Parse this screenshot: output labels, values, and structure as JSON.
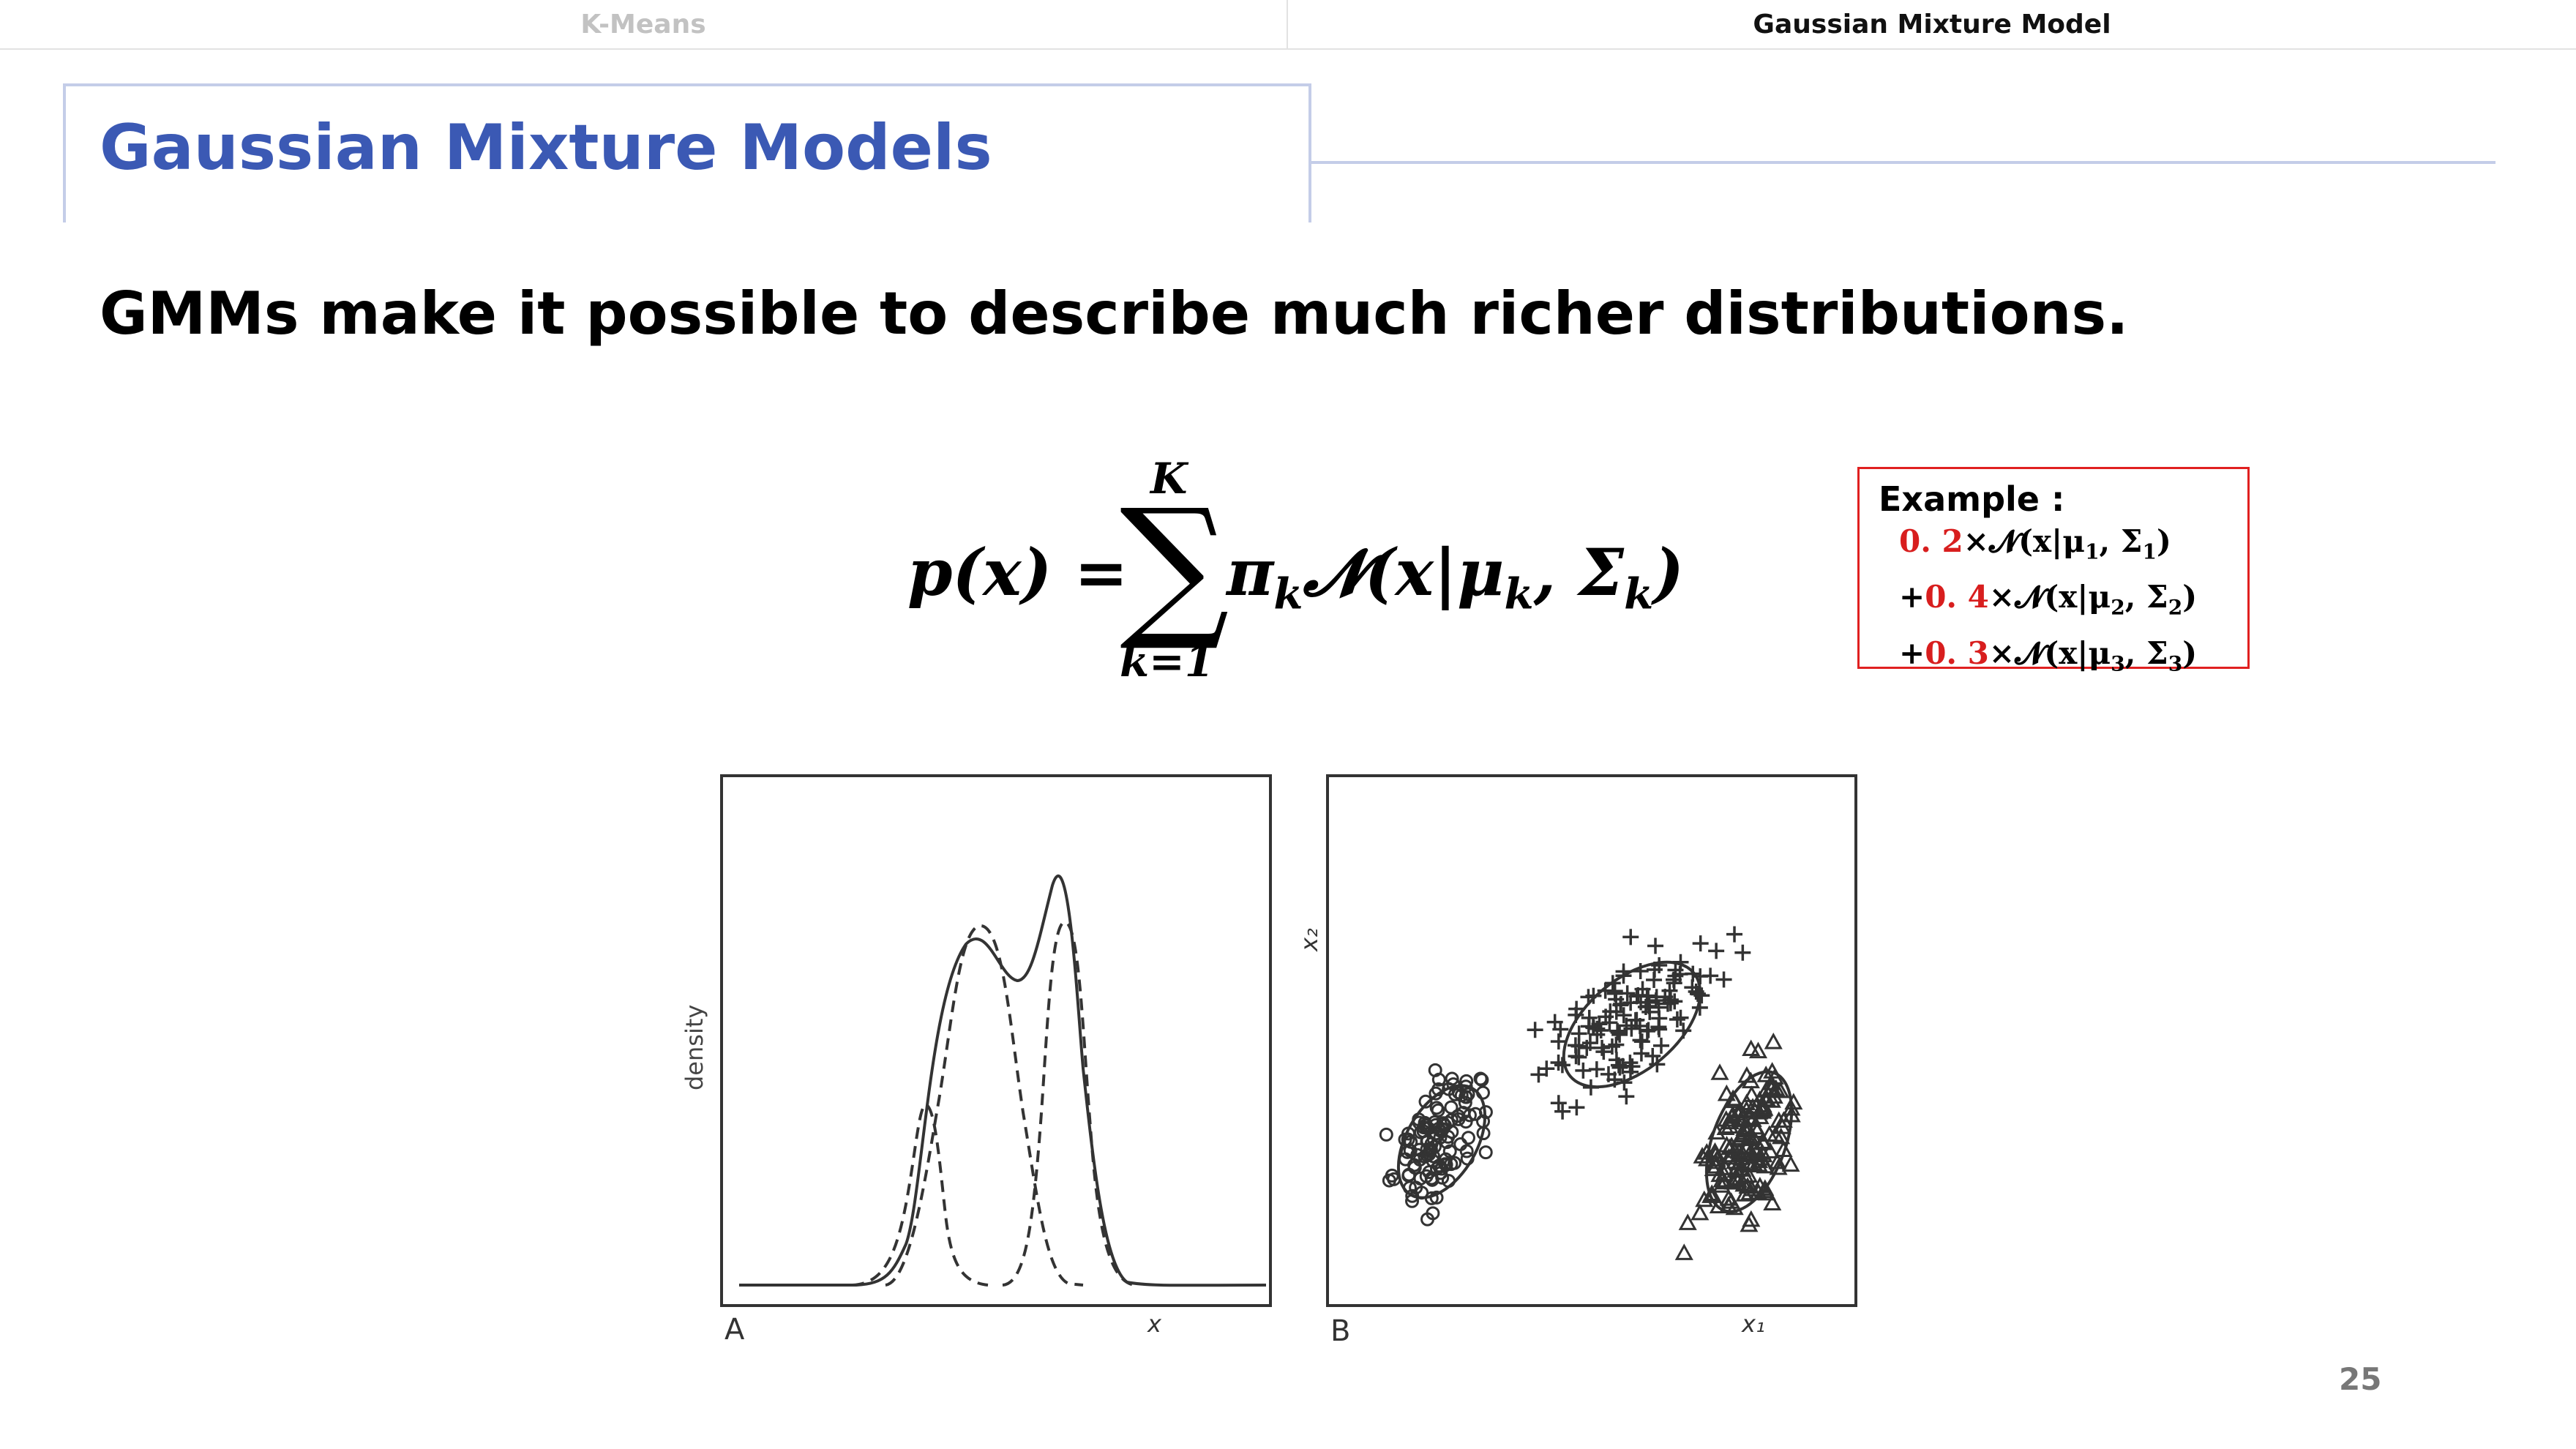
{
  "tabs": [
    {
      "label": "K-Means",
      "active": false
    },
    {
      "label": "Gaussian Mixture Model",
      "active": true
    }
  ],
  "title": "Gaussian Mixture Models",
  "headline": "GMMs make it possible to describe much richer distributions.",
  "formula": {
    "lhs": "p(x) =",
    "upper": "K",
    "lower": "k=1",
    "rhs_text": "π",
    "rhs_sub": "k",
    "rhs_rest": "𝓝(x|μ",
    "rhs_sub2": "k",
    "rhs_comma": ", Σ",
    "rhs_sub3": "k",
    "rhs_close": ")"
  },
  "example": {
    "title": "Example :",
    "lines": [
      {
        "prefix": "",
        "weight": "0. 2",
        "rest": "×𝓝(x|μ",
        "sub1": "1",
        "mid": ", Σ",
        "sub2": "1",
        "end": ")"
      },
      {
        "prefix": "+",
        "weight": "0. 4",
        "rest": "×𝓝(x|μ",
        "sub1": "2",
        "mid": ", Σ",
        "sub2": "2",
        "end": ")"
      },
      {
        "prefix": "+",
        "weight": "0. 3",
        "rest": "×𝓝(x|μ",
        "sub1": "3",
        "mid": ", Σ",
        "sub2": "3",
        "end": ")"
      }
    ]
  },
  "figure_a": {
    "panel_label": "A",
    "xlabel": "x",
    "ylabel": "density"
  },
  "figure_b": {
    "panel_label": "B",
    "xlabel": "x₁",
    "ylabel": "x₂"
  },
  "page_number": "25",
  "colors": {
    "title_blue": "#3b59b4",
    "frame": "#c4cde8",
    "accent_red": "#d81e1e"
  }
}
